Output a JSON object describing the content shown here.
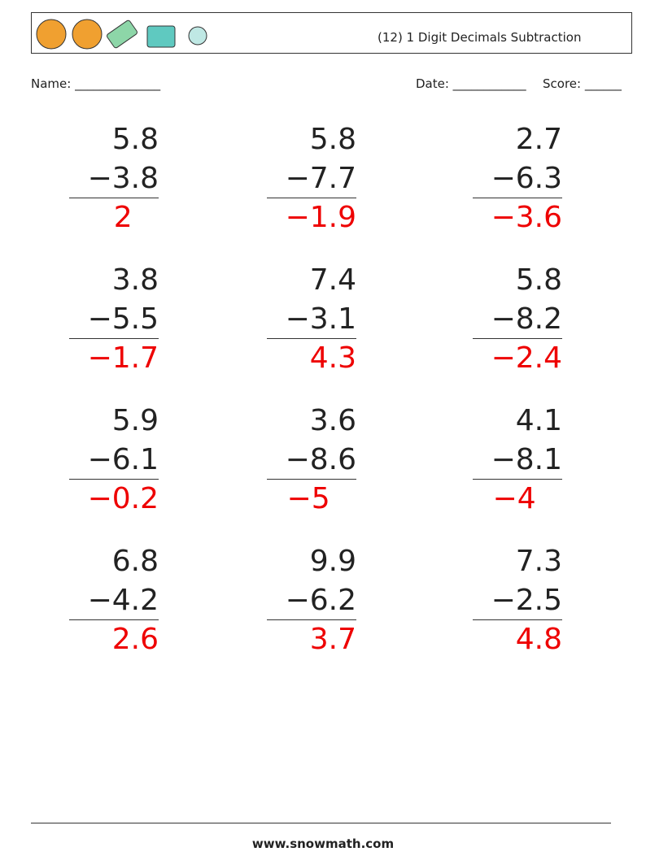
{
  "header": {
    "title": "(12) 1 Digit Decimals Subtraction"
  },
  "fields": {
    "name": "Name: ______________",
    "date": "Date: ____________",
    "score": "Score: ______"
  },
  "problems": [
    {
      "top": "5.8",
      "bottom": "−3.8",
      "answer": "2"
    },
    {
      "top": "5.8",
      "bottom": "−7.7",
      "answer": "−1.9"
    },
    {
      "top": "2.7",
      "bottom": "−6.3",
      "answer": "−3.6"
    },
    {
      "top": "3.8",
      "bottom": "−5.5",
      "answer": "−1.7"
    },
    {
      "top": "7.4",
      "bottom": "−3.1",
      "answer": "4.3"
    },
    {
      "top": "5.8",
      "bottom": "−8.2",
      "answer": "−2.4"
    },
    {
      "top": "5.9",
      "bottom": "−6.1",
      "answer": "−0.2"
    },
    {
      "top": "3.6",
      "bottom": "−8.6",
      "answer": "−5"
    },
    {
      "top": "4.1",
      "bottom": "−8.1",
      "answer": "−4"
    },
    {
      "top": "6.8",
      "bottom": "−4.2",
      "answer": "2.6"
    },
    {
      "top": "9.9",
      "bottom": "−6.2",
      "answer": "3.7"
    },
    {
      "top": "7.3",
      "bottom": "−2.5",
      "answer": "4.8"
    }
  ],
  "footer": {
    "site": "www.snowmath.com"
  }
}
